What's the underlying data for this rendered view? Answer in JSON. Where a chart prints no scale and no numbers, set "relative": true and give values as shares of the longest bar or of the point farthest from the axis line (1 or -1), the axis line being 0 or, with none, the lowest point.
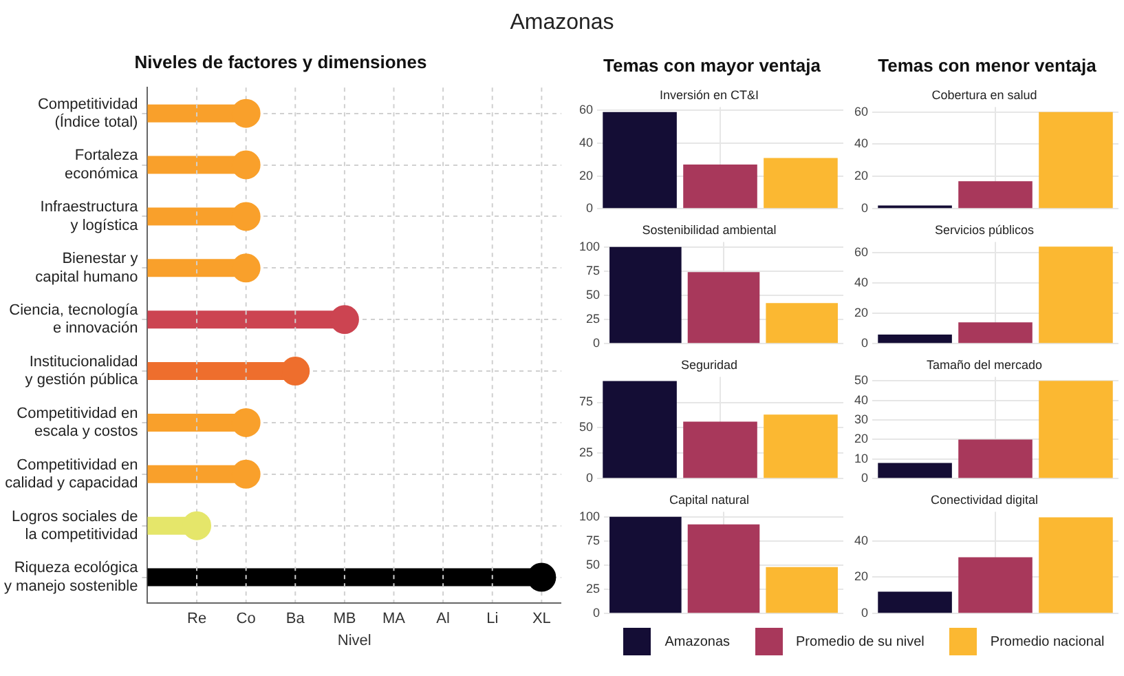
{
  "chart_data": [
    {
      "type": "other",
      "title": "Amazonas"
    },
    {
      "type": "lollipop",
      "title": "Niveles de factores y dimensiones",
      "xlabel": "Nivel",
      "orientation": "horizontal",
      "categories": [
        "Competitividad (Índice total)",
        "Fortaleza económica",
        "Infraestructura y logística",
        "Bienestar y capital humano",
        "Ciencia, tecnología e innovación",
        "Institucionalidad y gestión pública",
        "Competitividad en escala y costos",
        "Competitividad en calidad y capacidad",
        "Logros sociales de la competitividad",
        "Riqueza ecológica y manejo sostenible"
      ],
      "relative": true,
      "values": [
        0.25,
        0.25,
        0.25,
        0.25,
        0.5,
        0.375,
        0.25,
        0.25,
        0.125,
        1
      ],
      "colors": [
        "#f9a02b",
        "#f9a02b",
        "#f9a02b",
        "#f9a02b",
        "#cc4451",
        "#ee6e2d",
        "#f9a02b",
        "#f9a02b",
        "#e5e66a",
        "#000000"
      ],
      "annotations": [
        "Re",
        "Co",
        "Ba",
        "MB",
        "MA",
        "Al",
        "Li",
        "XL"
      ],
      "grid": true
    },
    {
      "type": "bar",
      "subtitle": "Temas con mayor ventaja",
      "title": "Inversión en CT&I",
      "categories": [
        null
      ],
      "ylim": [
        0,
        62
      ],
      "yticks": [
        0,
        20,
        40,
        60
      ],
      "grid": true,
      "series": [
        {
          "color": "#140d35",
          "values": [
            59
          ]
        },
        {
          "color": "#a8385b",
          "values": [
            27
          ]
        },
        {
          "color": "#fbb832",
          "values": [
            31
          ]
        }
      ]
    },
    {
      "type": "bar",
      "subtitle": "Temas con menor ventaja",
      "title": "Cobertura en salud",
      "categories": [
        null
      ],
      "ylim": [
        0,
        63
      ],
      "yticks": [
        0,
        20,
        40,
        60
      ],
      "grid": true,
      "series": [
        {
          "color": "#140d35",
          "values": [
            2
          ]
        },
        {
          "color": "#a8385b",
          "values": [
            17
          ]
        },
        {
          "color": "#fbb832",
          "values": [
            60
          ]
        }
      ]
    },
    {
      "type": "bar",
      "title": "Sostenibilidad ambiental",
      "categories": [
        null
      ],
      "ylim": [
        0,
        105
      ],
      "yticks": [
        0,
        25,
        50,
        75,
        100
      ],
      "grid": true,
      "series": [
        {
          "color": "#140d35",
          "values": [
            100
          ]
        },
        {
          "color": "#a8385b",
          "values": [
            74
          ]
        },
        {
          "color": "#fbb832",
          "values": [
            42
          ]
        }
      ]
    },
    {
      "type": "bar",
      "title": "Servicios públicos",
      "categories": [
        null
      ],
      "ylim": [
        0,
        67
      ],
      "yticks": [
        0,
        20,
        40,
        60
      ],
      "grid": true,
      "series": [
        {
          "color": "#140d35",
          "values": [
            6
          ]
        },
        {
          "color": "#a8385b",
          "values": [
            14
          ]
        },
        {
          "color": "#fbb832",
          "values": [
            64
          ]
        }
      ]
    },
    {
      "type": "bar",
      "title": "Seguridad",
      "categories": [
        null
      ],
      "ylim": [
        0,
        100
      ],
      "yticks": [
        0,
        25,
        50,
        75
      ],
      "grid": true,
      "series": [
        {
          "color": "#140d35",
          "values": [
            96
          ]
        },
        {
          "color": "#a8385b",
          "values": [
            56
          ]
        },
        {
          "color": "#fbb832",
          "values": [
            63
          ]
        }
      ]
    },
    {
      "type": "bar",
      "title": "Tamaño del mercado",
      "categories": [
        null
      ],
      "ylim": [
        0,
        52
      ],
      "yticks": [
        0,
        10,
        20,
        30,
        40,
        50
      ],
      "grid": true,
      "series": [
        {
          "color": "#140d35",
          "values": [
            8
          ]
        },
        {
          "color": "#a8385b",
          "values": [
            20
          ]
        },
        {
          "color": "#fbb832",
          "values": [
            50
          ]
        }
      ]
    },
    {
      "type": "bar",
      "title": "Capital natural",
      "categories": [
        null
      ],
      "ylim": [
        0,
        105
      ],
      "yticks": [
        0,
        25,
        50,
        75,
        100
      ],
      "grid": true,
      "series": [
        {
          "color": "#140d35",
          "values": [
            100
          ]
        },
        {
          "color": "#a8385b",
          "values": [
            92
          ]
        },
        {
          "color": "#fbb832",
          "values": [
            48
          ]
        }
      ]
    },
    {
      "type": "bar",
      "title": "Conectividad digital",
      "categories": [
        null
      ],
      "ylim": [
        0,
        56
      ],
      "yticks": [
        0,
        20,
        40
      ],
      "grid": true,
      "legend": "bottom",
      "series": [
        {
          "name": "Amazonas",
          "color": "#140d35",
          "values": [
            12
          ]
        },
        {
          "name": "Promedio de su nivel",
          "color": "#a8385b",
          "values": [
            31
          ]
        },
        {
          "name": "Promedio nacional",
          "color": "#fbb832",
          "values": [
            53
          ]
        }
      ]
    }
  ]
}
